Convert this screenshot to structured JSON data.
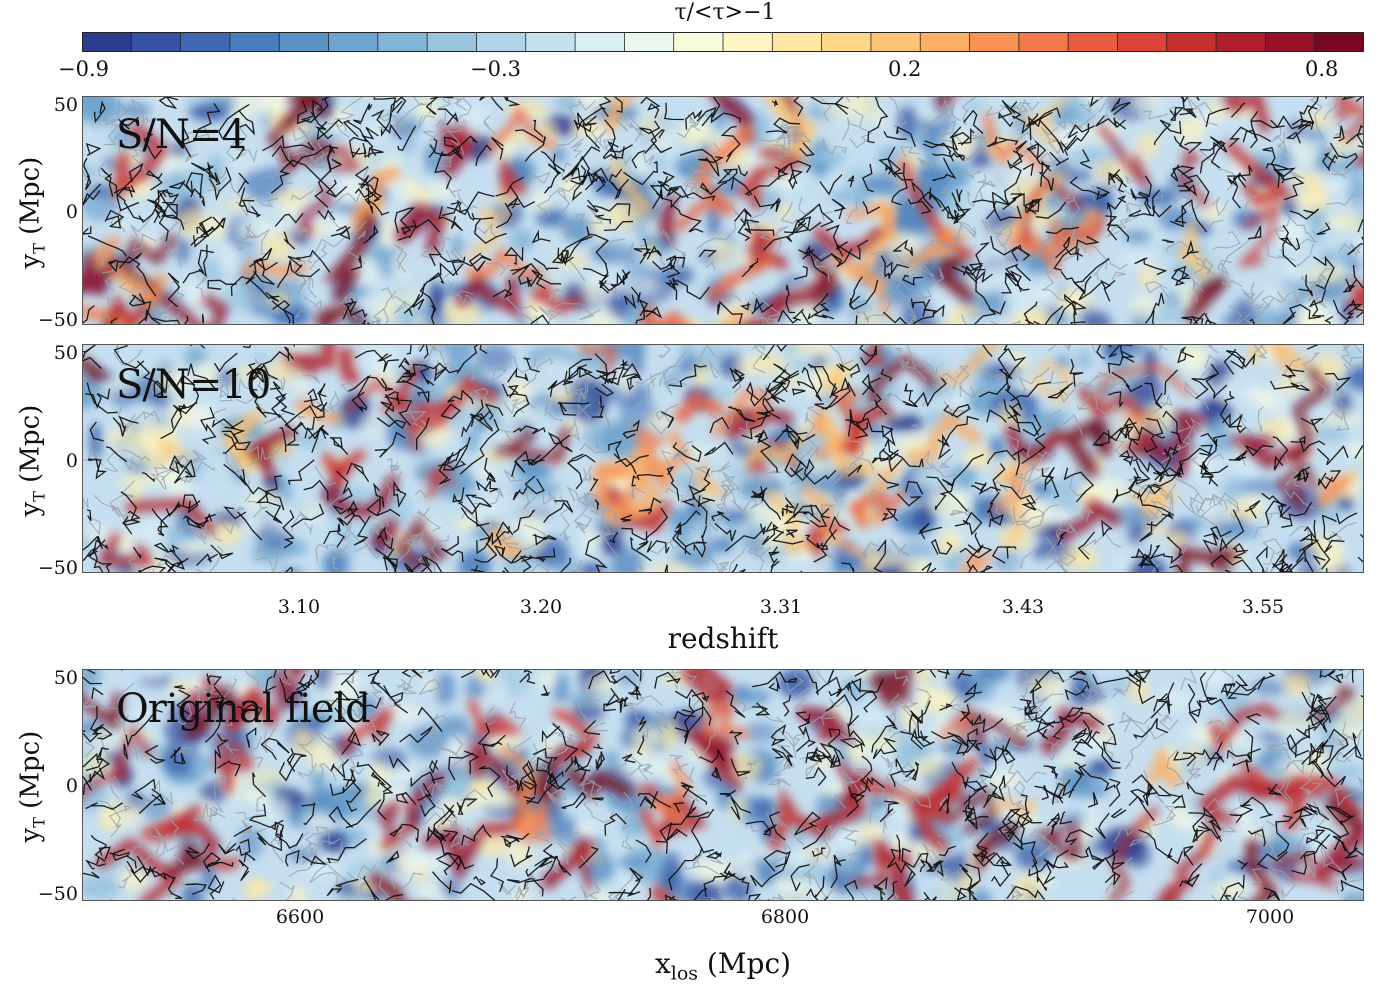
{
  "colorbar": {
    "title": "τ/<τ>−1",
    "ticks": [
      "−0.9",
      "−0.3",
      "0.2",
      "0.8"
    ],
    "tick_values": [
      -0.9,
      -0.3,
      0.2,
      0.8
    ],
    "range": [
      -0.9,
      0.8
    ],
    "colors": [
      "#2c3d8f",
      "#3553a2",
      "#3e68b0",
      "#4a7dbb",
      "#5a91c5",
      "#6ea4ce",
      "#83b5d7",
      "#9ac5df",
      "#b0d4e7",
      "#c6e2ef",
      "#daeef5",
      "#ecf7f0",
      "#f7fbdc",
      "#fdf5c2",
      "#fee8a4",
      "#fed88a",
      "#fdc475",
      "#fcae63",
      "#f99354",
      "#f4784a",
      "#e85d3f",
      "#d94436",
      "#c62f2f",
      "#b01e2b",
      "#961128",
      "#7a0822"
    ],
    "cmap": "RdYlBu_r"
  },
  "panels": [
    {
      "label": "S/N=4",
      "ylabel_main": "y",
      "ylabel_sub": "T",
      "ylabel_unit": " (Mpc)",
      "yticks": [
        "50",
        "0",
        "−50"
      ],
      "seed": 11,
      "contrast": 0.55
    },
    {
      "label": "S/N=10",
      "ylabel_main": "y",
      "ylabel_sub": "T",
      "ylabel_unit": " (Mpc)",
      "yticks": [
        "50",
        "0",
        "−50"
      ],
      "seed": 23,
      "contrast": 0.65
    },
    {
      "label": "Original field",
      "ylabel_main": "y",
      "ylabel_sub": "T",
      "ylabel_unit": " (Mpc)",
      "yticks": [
        "50",
        "0",
        "−50"
      ],
      "seed": 37,
      "contrast": 0.85
    }
  ],
  "redshift_axis": {
    "label": "redshift",
    "ticks": [
      "3.10",
      "3.20",
      "3.31",
      "3.43",
      "3.55"
    ]
  },
  "xlos_axis": {
    "label_main": "x",
    "label_sub": "los",
    "label_unit": " (Mpc)",
    "ticks": [
      "6600",
      "6800",
      "7000"
    ]
  },
  "chart_data": {
    "type": "heatmap",
    "title": "",
    "colorbar_label": "τ/<τ>−1",
    "colorbar_range": [
      -0.9,
      0.8
    ],
    "colorbar_ticks": [
      -0.9,
      -0.3,
      0.2,
      0.8
    ],
    "panels": [
      "S/N=4",
      "S/N=10",
      "Original field"
    ],
    "ylabel": "yT (Mpc)",
    "ylim": [
      -50,
      50
    ],
    "yticks": [
      50,
      0,
      -50
    ],
    "xlabel_top": "redshift",
    "xticks_top": [
      3.1,
      3.2,
      3.31,
      3.43,
      3.55
    ],
    "xlabel_bottom": "xlos (Mpc)",
    "xlim_bottom": [
      6510,
      7040
    ],
    "xticks_bottom": [
      6600,
      6800,
      7000
    ]
  }
}
